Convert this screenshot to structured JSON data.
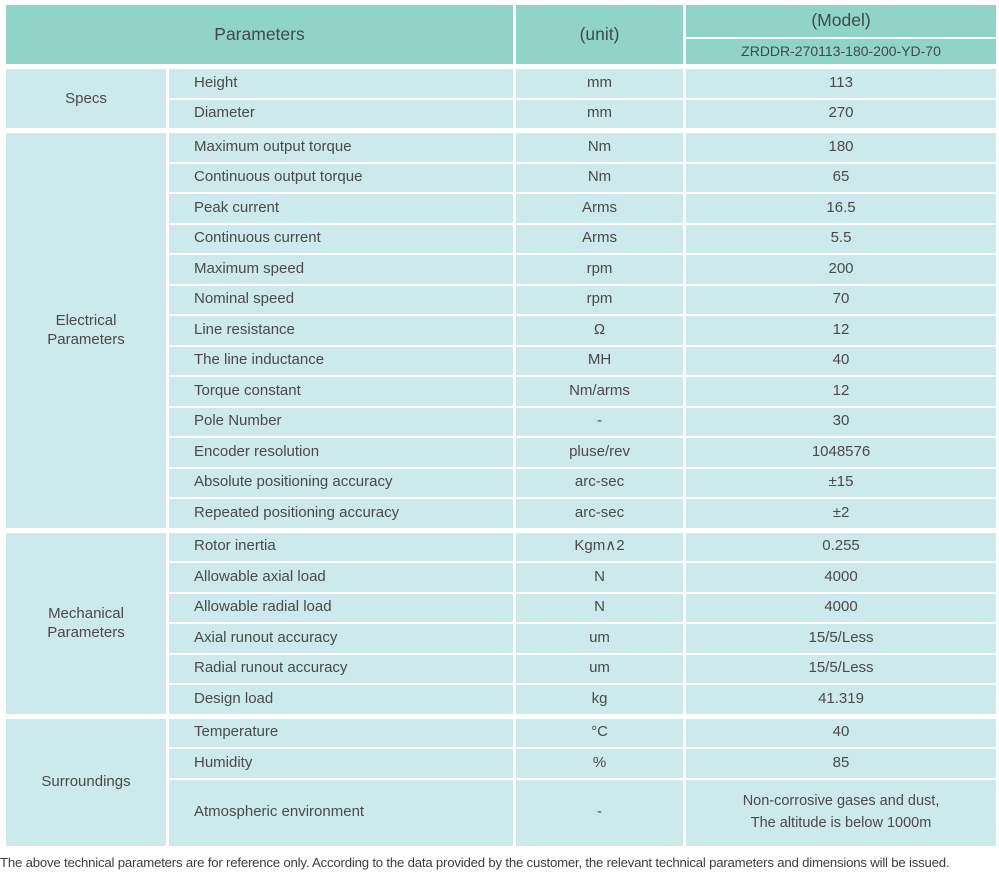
{
  "header": {
    "parameters_label": "Parameters",
    "unit_label": "(unit)",
    "model_label": "(Model)",
    "model_value": "ZRDDR-270113-180-200-YD-70"
  },
  "groups": [
    {
      "category": "Specs",
      "rows": [
        {
          "name": "Height",
          "unit": "mm",
          "value": "113"
        },
        {
          "name": "Diameter",
          "unit": "mm",
          "value": "270"
        }
      ]
    },
    {
      "category": "Electrical Parameters",
      "rows": [
        {
          "name": "Maximum output torque",
          "unit": "Nm",
          "value": "180"
        },
        {
          "name": "Continuous output torque",
          "unit": "Nm",
          "value": "65"
        },
        {
          "name": "Peak current",
          "unit": "Arms",
          "value": "16.5"
        },
        {
          "name": "Continuous current",
          "unit": "Arms",
          "value": "5.5"
        },
        {
          "name": "Maximum speed",
          "unit": "rpm",
          "value": "200"
        },
        {
          "name": "Nominal speed",
          "unit": "rpm",
          "value": "70"
        },
        {
          "name": "Line resistance",
          "unit": "Ω",
          "value": "12"
        },
        {
          "name": "The line inductance",
          "unit": "MH",
          "value": "40"
        },
        {
          "name": "Torque constant",
          "unit": "Nm/arms",
          "value": "12"
        },
        {
          "name": "Pole Number",
          "unit": "-",
          "value": "30"
        },
        {
          "name": "Encoder resolution",
          "unit": "pluse/rev",
          "value": "1048576"
        },
        {
          "name": "Absolute positioning accuracy",
          "unit": "arc-sec",
          "value": "±15"
        },
        {
          "name": "Repeated positioning accuracy",
          "unit": "arc-sec",
          "value": "±2"
        }
      ]
    },
    {
      "category": "Mechanical Parameters",
      "rows": [
        {
          "name": "Rotor inertia",
          "unit": "Kgm∧2",
          "value": "0.255"
        },
        {
          "name": "Allowable axial load",
          "unit": "N",
          "value": "4000"
        },
        {
          "name": "Allowable radial load",
          "unit": "N",
          "value": "4000"
        },
        {
          "name": "Axial runout accuracy",
          "unit": "um",
          "value": "15/5/Less"
        },
        {
          "name": "Radial runout accuracy",
          "unit": "um",
          "value": "15/5/Less"
        },
        {
          "name": "Design load",
          "unit": "kg",
          "value": "41.319"
        }
      ]
    },
    {
      "category": "Surroundings",
      "rows": [
        {
          "name": "Temperature",
          "unit": "°C",
          "value": "40"
        },
        {
          "name": "Humidity",
          "unit": "%",
          "value": "85"
        },
        {
          "name": "Atmospheric environment",
          "unit": "-",
          "value": "Non-corrosive gases and dust,\nThe altitude is below 1000m"
        }
      ]
    }
  ],
  "footer": {
    "note": "The above technical parameters are for reference only. According to the data provided by the customer, the relevant technical parameters and dimensions will be issued."
  },
  "colors": {
    "header_bg": "#90d4c7",
    "cell_bg": "#cce9ec",
    "text": "#4a4a4a"
  }
}
